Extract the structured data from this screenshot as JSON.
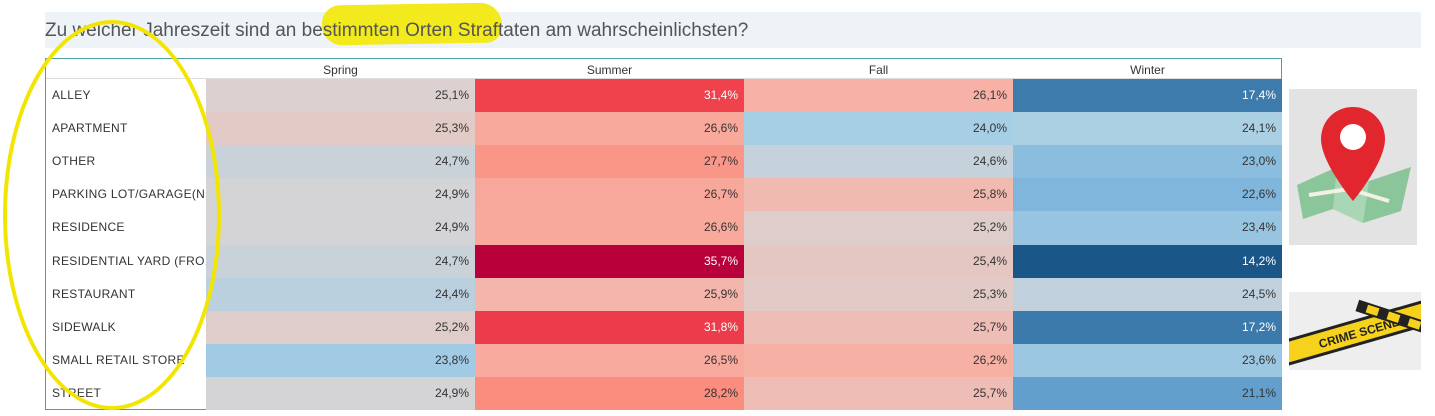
{
  "title": {
    "before": "Zu welcher Jahreszeit sind an ",
    "highlight": "bestimmten Orten",
    "after": " Straftaten am wahrscheinlichsten?"
  },
  "images": {
    "tape_text": "CRIME SCENE"
  },
  "chart_data": {
    "type": "heatmap",
    "columns": [
      "Spring",
      "Summer",
      "Fall",
      "Winter"
    ],
    "rows": [
      "ALLEY",
      "APARTMENT",
      "OTHER",
      "PARKING LOT/GARAGE(N..",
      "RESIDENCE",
      "RESIDENTIAL YARD (FRO..",
      "RESTAURANT",
      "SIDEWALK",
      "SMALL RETAIL STORE",
      "STREET"
    ],
    "values": [
      [
        25.1,
        31.4,
        26.1,
        17.4
      ],
      [
        25.3,
        26.6,
        24.0,
        24.1
      ],
      [
        24.7,
        27.7,
        24.6,
        23.0
      ],
      [
        24.9,
        26.7,
        25.8,
        22.6
      ],
      [
        24.9,
        26.6,
        25.2,
        23.4
      ],
      [
        24.7,
        35.7,
        25.4,
        14.2
      ],
      [
        24.4,
        25.9,
        25.3,
        24.5
      ],
      [
        25.2,
        31.8,
        25.7,
        17.2
      ],
      [
        23.8,
        26.5,
        26.2,
        23.6
      ],
      [
        24.9,
        28.2,
        25.7,
        21.1
      ]
    ],
    "labels": [
      [
        "25,1%",
        "31,4%",
        "26,1%",
        "17,4%"
      ],
      [
        "25,3%",
        "26,6%",
        "24,0%",
        "24,1%"
      ],
      [
        "24,7%",
        "27,7%",
        "24,6%",
        "23,0%"
      ],
      [
        "24,9%",
        "26,7%",
        "25,8%",
        "22,6%"
      ],
      [
        "24,9%",
        "26,6%",
        "25,2%",
        "23,4%"
      ],
      [
        "24,7%",
        "35,7%",
        "25,4%",
        "14,2%"
      ],
      [
        "24,4%",
        "25,9%",
        "25,3%",
        "24,5%"
      ],
      [
        "25,2%",
        "31,8%",
        "25,7%",
        "17,2%"
      ],
      [
        "23,8%",
        "26,5%",
        "26,2%",
        "23,6%"
      ],
      [
        "24,9%",
        "28,2%",
        "25,7%",
        "21,1%"
      ]
    ],
    "color_scale": {
      "type": "diverging",
      "low": "#1a5688",
      "mid": "#d6d6d6",
      "high": "#b8003a",
      "midpoint": 25.0,
      "min": 14.2,
      "max": 35.7
    }
  }
}
